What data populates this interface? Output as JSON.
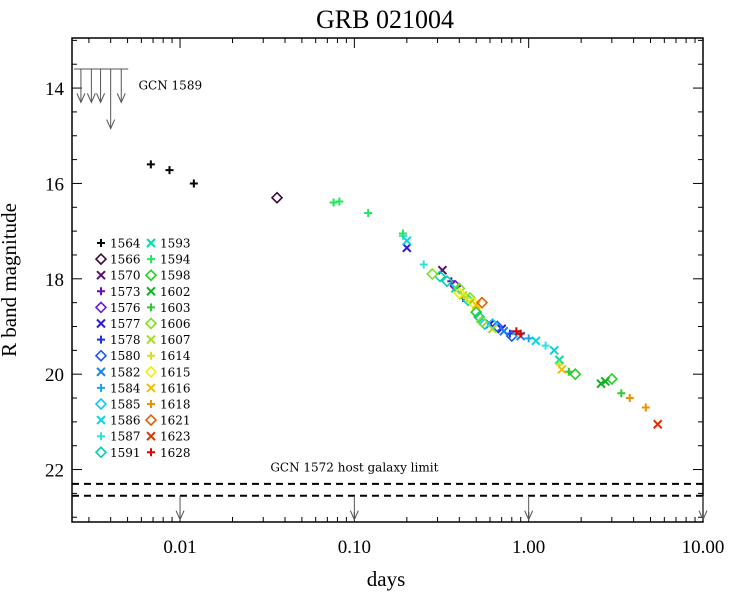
{
  "chart_data": {
    "type": "scatter",
    "title": "GRB 021004",
    "xlabel": "days",
    "ylabel": "R band magnitude",
    "x_scale": "log",
    "xlim": [
      0.0024,
      10.0
    ],
    "ylim": [
      23.1,
      12.95
    ],
    "x_ticks": [
      {
        "value": 0.01,
        "label": "0.01"
      },
      {
        "value": 0.1,
        "label": "0.10"
      },
      {
        "value": 1.0,
        "label": "1.00"
      },
      {
        "value": 10.0,
        "label": "10.00"
      }
    ],
    "y_ticks": [
      {
        "value": 14,
        "label": "14"
      },
      {
        "value": 16,
        "label": "16"
      },
      {
        "value": 18,
        "label": "18"
      },
      {
        "value": 20,
        "label": "20"
      },
      {
        "value": 22,
        "label": "22"
      }
    ],
    "legend_position": "left",
    "series": [
      {
        "name": "1564",
        "color": "#000000",
        "marker": "plus",
        "points": [
          [
            0.0068,
            15.6
          ],
          [
            0.0087,
            15.72
          ],
          [
            0.012,
            16.0
          ]
        ]
      },
      {
        "name": "1566",
        "color": "#3a0a3a",
        "marker": "diamond",
        "points": [
          [
            0.036,
            16.3
          ]
        ]
      },
      {
        "name": "1570",
        "color": "#5a0f6e",
        "marker": "x",
        "points": [
          [
            0.32,
            17.82
          ]
        ]
      },
      {
        "name": "1573",
        "color": "#6a0dad",
        "marker": "plus",
        "points": [
          [
            0.36,
            18.05
          ]
        ]
      },
      {
        "name": "1576",
        "color": "#6a1bd8",
        "marker": "diamond",
        "points": [
          [
            0.38,
            18.15
          ]
        ]
      },
      {
        "name": "1577",
        "color": "#2a1ad8",
        "marker": "x",
        "points": [
          [
            0.2,
            17.35
          ],
          [
            0.6,
            18.95
          ],
          [
            0.7,
            19.05
          ]
        ]
      },
      {
        "name": "1578",
        "color": "#1a2ee8",
        "marker": "plus",
        "points": [
          [
            0.42,
            18.4
          ],
          [
            0.78,
            19.15
          ]
        ]
      },
      {
        "name": "1580",
        "color": "#1a56f0",
        "marker": "diamond",
        "points": [
          [
            0.66,
            19.0
          ],
          [
            0.8,
            19.2
          ]
        ]
      },
      {
        "name": "1582",
        "color": "#1a80f0",
        "marker": "x",
        "points": [
          [
            0.72,
            19.1
          ],
          [
            0.9,
            19.2
          ]
        ]
      },
      {
        "name": "1584",
        "color": "#1aa4f0",
        "marker": "plus",
        "points": [
          [
            0.85,
            19.15
          ],
          [
            1.0,
            19.25
          ]
        ]
      },
      {
        "name": "1585",
        "color": "#1ac6f0",
        "marker": "diamond",
        "points": [
          [
            0.56,
            18.95
          ],
          [
            0.62,
            18.95
          ]
        ]
      },
      {
        "name": "1586",
        "color": "#00d8e0",
        "marker": "x",
        "points": [
          [
            0.2,
            17.2
          ],
          [
            1.1,
            19.3
          ],
          [
            1.4,
            19.5
          ]
        ]
      },
      {
        "name": "1587",
        "color": "#30e0e0",
        "marker": "plus",
        "points": [
          [
            0.19,
            17.1
          ],
          [
            0.25,
            17.7
          ],
          [
            1.25,
            19.4
          ]
        ]
      },
      {
        "name": "1591",
        "color": "#00d0b0",
        "marker": "diamond",
        "points": [
          [
            0.31,
            17.95
          ],
          [
            0.34,
            18.05
          ],
          [
            0.45,
            18.45
          ],
          [
            0.52,
            18.8
          ]
        ]
      },
      {
        "name": "1593",
        "color": "#00e0a0",
        "marker": "x",
        "points": [
          [
            0.38,
            18.2
          ],
          [
            1.5,
            19.7
          ]
        ]
      },
      {
        "name": "1594",
        "color": "#20e860",
        "marker": "plus",
        "points": [
          [
            0.076,
            16.4
          ],
          [
            0.082,
            16.38
          ],
          [
            0.12,
            16.62
          ],
          [
            0.19,
            17.05
          ]
        ]
      },
      {
        "name": "1598",
        "color": "#20d020",
        "marker": "diamond",
        "points": [
          [
            0.5,
            18.7
          ],
          [
            1.85,
            20.0
          ],
          [
            3.0,
            20.1
          ]
        ]
      },
      {
        "name": "1602",
        "color": "#10b020",
        "marker": "x",
        "points": [
          [
            2.6,
            20.2
          ],
          [
            2.75,
            20.15
          ]
        ]
      },
      {
        "name": "1603",
        "color": "#30c830",
        "marker": "plus",
        "points": [
          [
            1.7,
            19.95
          ],
          [
            3.4,
            20.4
          ]
        ]
      },
      {
        "name": "1606",
        "color": "#80e020",
        "marker": "diamond",
        "points": [
          [
            0.28,
            17.9
          ],
          [
            0.4,
            18.2
          ],
          [
            0.46,
            18.4
          ],
          [
            0.54,
            18.9
          ]
        ]
      },
      {
        "name": "1607",
        "color": "#a0e020",
        "marker": "x",
        "points": [
          [
            0.42,
            18.35
          ],
          [
            0.62,
            19.05
          ]
        ]
      },
      {
        "name": "1614",
        "color": "#d8e020",
        "marker": "plus",
        "points": [
          [
            0.44,
            18.4
          ],
          [
            1.5,
            19.8
          ]
        ]
      },
      {
        "name": "1615",
        "color": "#f0f000",
        "marker": "diamond",
        "points": [
          [
            0.4,
            18.3
          ],
          [
            0.48,
            18.5
          ]
        ]
      },
      {
        "name": "1616",
        "color": "#f0c000",
        "marker": "x",
        "points": [
          [
            0.5,
            18.55
          ],
          [
            1.55,
            19.9
          ]
        ]
      },
      {
        "name": "1618",
        "color": "#f09000",
        "marker": "plus",
        "points": [
          [
            3.8,
            20.5
          ],
          [
            4.7,
            20.7
          ]
        ]
      },
      {
        "name": "1621",
        "color": "#e06000",
        "marker": "diamond",
        "points": [
          [
            0.54,
            18.5
          ]
        ]
      },
      {
        "name": "1623",
        "color": "#e03000",
        "marker": "x",
        "points": [
          [
            5.5,
            21.05
          ]
        ]
      },
      {
        "name": "1628",
        "color": "#e00000",
        "marker": "plus",
        "points": [
          [
            0.85,
            19.1
          ],
          [
            0.9,
            19.15
          ]
        ]
      }
    ],
    "annotations": [
      {
        "text": "GCN 1589",
        "x": 0.0048,
        "y": 13.95
      },
      {
        "text": "GCN 1572 host galaxy limit",
        "x": 0.1,
        "y": 22.0
      }
    ],
    "limits": {
      "gcn1589_upper_limits": [
        {
          "x": 0.0027,
          "y_from": 13.6,
          "y_to": 14.3
        },
        {
          "x": 0.0031,
          "y_from": 13.6,
          "y_to": 14.3
        },
        {
          "x": 0.0035,
          "y_from": 13.6,
          "y_to": 14.3
        },
        {
          "x": 0.004,
          "y_from": 13.6,
          "y_to": 14.85
        },
        {
          "x": 0.0046,
          "y_from": 13.6,
          "y_to": 14.3
        }
      ],
      "host_galaxy_limit_lines": [
        22.3,
        22.55
      ],
      "host_galaxy_arrows": [
        0.01,
        0.1,
        1.0,
        10.0
      ]
    }
  }
}
